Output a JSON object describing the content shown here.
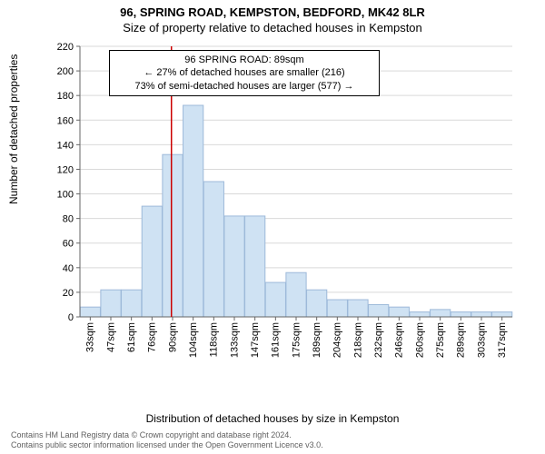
{
  "title_main": "96, SPRING ROAD, KEMPSTON, BEDFORD, MK42 8LR",
  "title_sub": "Size of property relative to detached houses in Kempston",
  "y_label": "Number of detached properties",
  "x_label": "Distribution of detached houses by size in Kempston",
  "footer_line1": "Contains HM Land Registry data © Crown copyright and database right 2024.",
  "footer_line2": "Contains public sector information licensed under the Open Government Licence v3.0.",
  "annotation": {
    "line1": "96 SPRING ROAD: 89sqm",
    "line2": "← 27% of detached houses are smaller (216)",
    "line3": "73% of semi-detached houses are larger (577) →"
  },
  "chart": {
    "type": "histogram",
    "background_color": "#ffffff",
    "grid_color": "#d9d9d9",
    "axis_color": "#666666",
    "bar_fill": "#cfe2f3",
    "bar_stroke": "#9db9d9",
    "ref_line_color": "#cc0000",
    "ref_line_x": 89,
    "ylim": [
      0,
      220
    ],
    "ytick_step": 20,
    "x_categories": [
      "33sqm",
      "47sqm",
      "61sqm",
      "76sqm",
      "90sqm",
      "104sqm",
      "118sqm",
      "133sqm",
      "147sqm",
      "161sqm",
      "175sqm",
      "189sqm",
      "204sqm",
      "218sqm",
      "232sqm",
      "246sqm",
      "260sqm",
      "275sqm",
      "289sqm",
      "303sqm",
      "317sqm"
    ],
    "values": [
      8,
      22,
      22,
      90,
      132,
      172,
      110,
      82,
      82,
      28,
      36,
      22,
      14,
      14,
      10,
      8,
      4,
      6,
      4,
      4,
      4
    ],
    "label_fontsize": 11,
    "tick_fontsize": 11
  }
}
